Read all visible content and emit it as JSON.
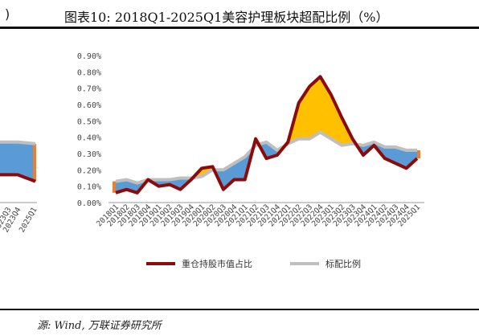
{
  "header": {
    "prev_fragment": ")",
    "title": "图表10:  2018Q1-2025Q1美容护理板块超配比例（%）"
  },
  "footer": {
    "source": "源: Wind, 万联证券研究所"
  },
  "chart_data": [
    {
      "type": "area",
      "partial": true,
      "categories": [
        "2023Q3",
        "2023Q4",
        "2025Q1"
      ],
      "series": [
        {
          "values": [
            0.37,
            0.37,
            0.36
          ]
        },
        {
          "values": [
            0.17,
            0.17,
            0.13
          ]
        }
      ]
    },
    {
      "type": "line",
      "categories": [
        "2018Q1",
        "2018Q2",
        "2018Q3",
        "2018Q4",
        "2019Q1",
        "2019Q2",
        "2019Q3",
        "2019Q4",
        "2020Q1",
        "2020Q2",
        "2020Q3",
        "2020Q4",
        "2021Q1",
        "2021Q2",
        "2021Q3",
        "2021Q4",
        "2022Q1",
        "2022Q2",
        "2022Q3",
        "2022Q4",
        "2023Q1",
        "2023Q2",
        "2023Q3",
        "2023Q4",
        "2024Q1",
        "2024Q2",
        "2024Q3",
        "2024Q4",
        "2025Q1"
      ],
      "series": [
        {
          "name": "重仓持股市值占比",
          "color": "#8b0a0a",
          "values": [
            0.06,
            0.08,
            0.06,
            0.14,
            0.1,
            0.11,
            0.08,
            0.14,
            0.21,
            0.22,
            0.08,
            0.14,
            0.14,
            0.39,
            0.27,
            0.29,
            0.37,
            0.61,
            0.71,
            0.77,
            0.66,
            0.52,
            0.39,
            0.29,
            0.35,
            0.27,
            0.24,
            0.21,
            0.27
          ]
        },
        {
          "name": "标配比例",
          "color": "#bfbfbf",
          "values": [
            0.13,
            0.14,
            0.12,
            0.14,
            0.14,
            0.14,
            0.15,
            0.15,
            0.16,
            0.2,
            0.2,
            0.24,
            0.28,
            0.35,
            0.37,
            0.32,
            0.36,
            0.39,
            0.39,
            0.43,
            0.39,
            0.35,
            0.36,
            0.35,
            0.37,
            0.34,
            0.34,
            0.32,
            0.32
          ]
        }
      ],
      "fill_colors": {
        "overweight": "#ffc000",
        "underweight": "#5b9bd5",
        "edge": "#ed7d31"
      },
      "y_ticks": [
        "0.00%",
        "0.10%",
        "0.20%",
        "0.30%",
        "0.40%",
        "0.50%",
        "0.60%",
        "0.70%",
        "0.80%",
        "0.90%"
      ],
      "ylim": [
        0,
        0.9
      ],
      "legend_position": "bottom"
    }
  ]
}
